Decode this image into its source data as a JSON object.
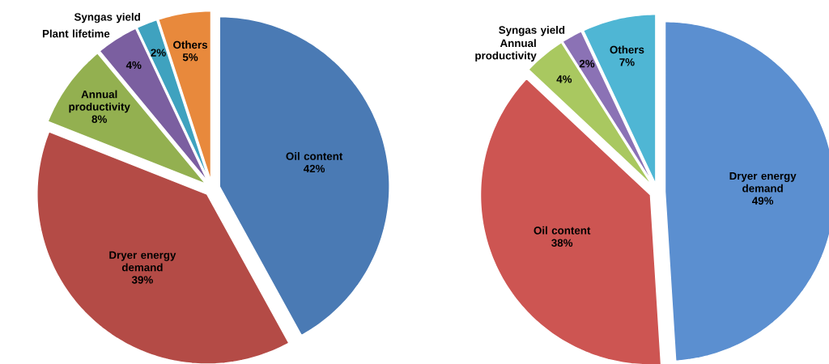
{
  "chart_data": [
    {
      "type": "pie",
      "categories": [
        "Oil content",
        "Dryer energy demand",
        "Annual productivity",
        "Plant lifetime",
        "Syngas yield",
        "Others"
      ],
      "values": [
        42,
        39,
        8,
        4,
        2,
        5
      ],
      "value_labels": [
        "42%",
        "39%",
        "8%",
        "4%",
        "2%",
        "5%"
      ],
      "colors": [
        "#4a7ab4",
        "#b44b46",
        "#93b050",
        "#7b5fa0",
        "#3fa2bf",
        "#e8893c"
      ],
      "data_labels": true
    },
    {
      "type": "pie",
      "categories": [
        "Dryer energy demand",
        "Oil content",
        "Annual productivity",
        "Syngas yield",
        "Others"
      ],
      "values": [
        49,
        38,
        4,
        2,
        7
      ],
      "value_labels": [
        "49%",
        "38%",
        "4%",
        "2%",
        "7%"
      ],
      "colors": [
        "#5b8fd0",
        "#cd5552",
        "#a9c860",
        "#8b72b5",
        "#4fb6d4"
      ],
      "data_labels": true
    }
  ]
}
